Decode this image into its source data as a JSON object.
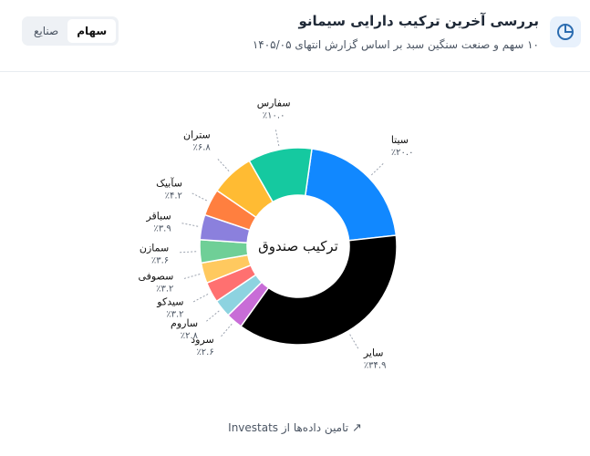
{
  "header": {
    "title": "بررسی آخرین ترکیب دارایی سیمانو",
    "subtitle": "۱۰ سهم و صنعت سنگین سبد بر اساس گزارش انتهای ۱۴۰۵/۰۵"
  },
  "tabs": [
    "سهام",
    "صنایع"
  ],
  "footer": "تامین داده‌ها از Investats",
  "chart_data": {
    "type": "pie",
    "donut": true,
    "center_label": "ترکیب صندوق",
    "categories": [
      "سیتا",
      "سایر",
      "سرود",
      "ساروم",
      "سیدکو",
      "سصوفی",
      "سمازن",
      "سباقر",
      "سآبیک",
      "ستران",
      "سفارس"
    ],
    "values": [
      20.0,
      34.9,
      2.6,
      2.8,
      3.2,
      3.2,
      3.6,
      3.9,
      4.2,
      6.8,
      10.0
    ],
    "value_labels": [
      "٪۲۰.۰",
      "٪۳۴.۹",
      "٪۲.۶",
      "٪۲.۸",
      "٪۳.۲",
      "٪۳.۲",
      "٪۳.۶",
      "٪۳.۹",
      "٪۴.۲",
      "٪۶.۸",
      "٪۱۰.۰"
    ],
    "colors": [
      "#1188ff",
      "#000000",
      "#c86dd7",
      "#8dd3e0",
      "#ff7070",
      "#ffc95f",
      "#6fcf97",
      "#8b80dd",
      "#ff7f3f",
      "#ffbb33",
      "#15c9a0"
    ]
  }
}
